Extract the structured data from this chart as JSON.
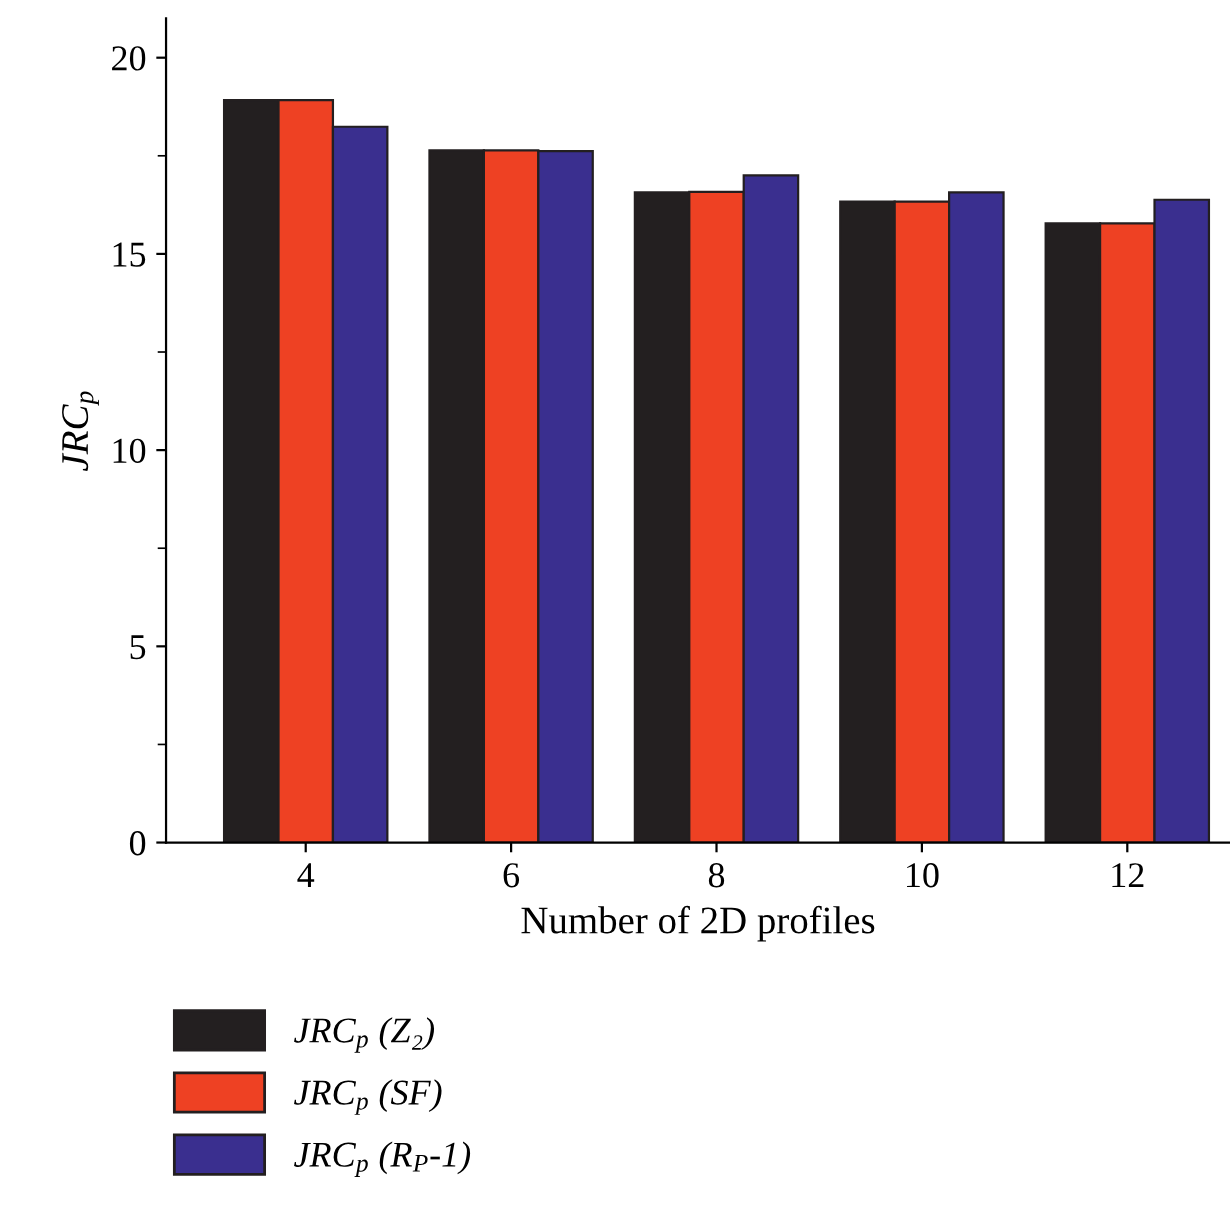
{
  "chart_data": {
    "type": "bar",
    "xlabel": "Number of 2D profiles",
    "ylabel": "JRC$_{p}$",
    "x": [
      4,
      6,
      8,
      10,
      12
    ],
    "series": [
      {
        "name": "JRC$_{p}$ (Z₂)",
        "color": "#231f20",
        "values": [
          18.92,
          17.64,
          16.57,
          16.33,
          15.78
        ]
      },
      {
        "name": "JRC$_{p}$ (SF)",
        "color": "#ee4123",
        "values": [
          18.92,
          17.64,
          16.58,
          16.33,
          15.78
        ]
      },
      {
        "name": "JRC$_{p}$ (R$_{P}$-1)",
        "color": "#3a2f8f",
        "values": [
          18.24,
          17.62,
          17.0,
          16.57,
          16.38
        ]
      }
    ],
    "xlim": [
      2.64,
      13
    ],
    "xticks": [
      4,
      6,
      8,
      10,
      12
    ],
    "ylim": [
      0,
      21
    ],
    "yticks": [
      0,
      5,
      10,
      15,
      20
    ],
    "grid": false,
    "legend": "bottom"
  }
}
